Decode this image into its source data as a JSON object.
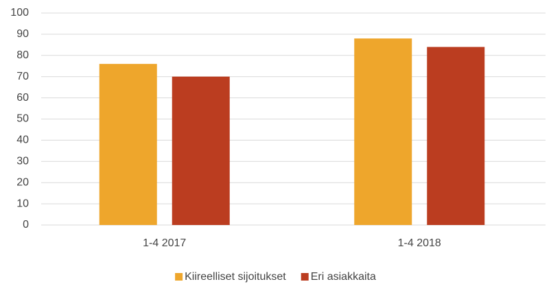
{
  "chart_data": {
    "type": "bar",
    "categories": [
      "1-4 2017",
      "1-4 2018"
    ],
    "series": [
      {
        "name": "Kiireelliset sijoitukset",
        "color": "#eea62c",
        "values": [
          76,
          88
        ]
      },
      {
        "name": "Eri asiakkaita",
        "color": "#bb3d20",
        "values": [
          70,
          84
        ]
      }
    ],
    "ylim": [
      0,
      100
    ],
    "yticks": [
      0,
      10,
      20,
      30,
      40,
      50,
      60,
      70,
      80,
      90,
      100
    ],
    "grid": true,
    "legend": "bottom"
  }
}
